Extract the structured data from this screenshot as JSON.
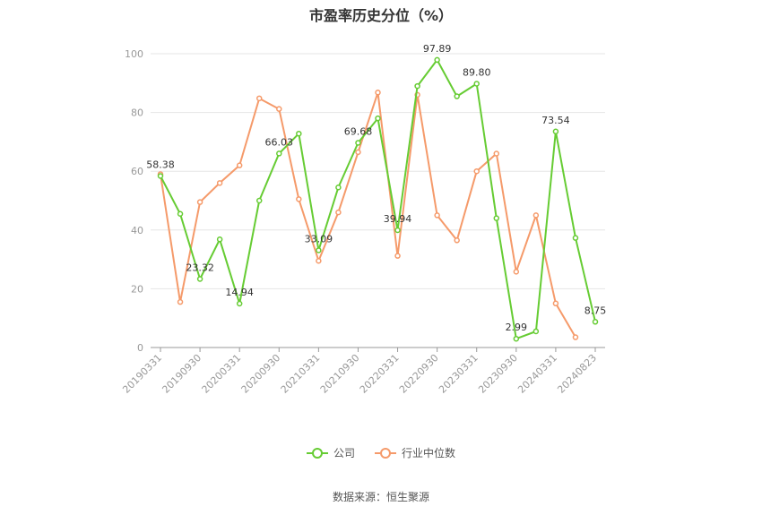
{
  "chart_data": {
    "type": "line",
    "title": "市盈率历史分位（%）",
    "ylim": [
      0,
      100
    ],
    "yticks": [
      0,
      20,
      40,
      60,
      80,
      100
    ],
    "grid": true,
    "legend_position": "bottom",
    "x_tick_labels": [
      "20190331",
      "20190930",
      "20200331",
      "20200930",
      "20210331",
      "20210930",
      "20220331",
      "20220930",
      "20230331",
      "20230930",
      "20240331",
      "20240823"
    ],
    "x_tick_indices": [
      0,
      2,
      4,
      6,
      8,
      10,
      12,
      14,
      16,
      18,
      20,
      22
    ],
    "series": [
      {
        "name": "公司",
        "color": "#66cc33",
        "values": [
          58.38,
          45.5,
          23.32,
          36.8,
          14.94,
          50.0,
          66.03,
          72.8,
          33.09,
          54.5,
          69.68,
          78.0,
          39.94,
          89.0,
          97.89,
          85.5,
          89.8,
          44.0,
          2.99,
          5.5,
          73.54,
          37.3,
          8.75
        ],
        "labels": {
          "0": "58.38",
          "2": "23.32",
          "4": "14.94",
          "6": "66.03",
          "8": "33.09",
          "10": "69.68",
          "12": "39.94",
          "14": "97.89",
          "16": "89.80",
          "18": "2.99",
          "20": "73.54",
          "22": "8.75"
        }
      },
      {
        "name": "行业中位数",
        "color": "#f59a6a",
        "values": [
          59.0,
          15.5,
          49.5,
          56.0,
          62.0,
          84.8,
          81.2,
          50.5,
          29.5,
          46.0,
          66.5,
          86.8,
          31.2,
          86.0,
          45.0,
          36.5,
          60.0,
          66.0,
          25.8,
          45.0,
          15.0,
          3.5,
          null
        ]
      }
    ]
  },
  "source_text": "数据来源：恒生聚源"
}
